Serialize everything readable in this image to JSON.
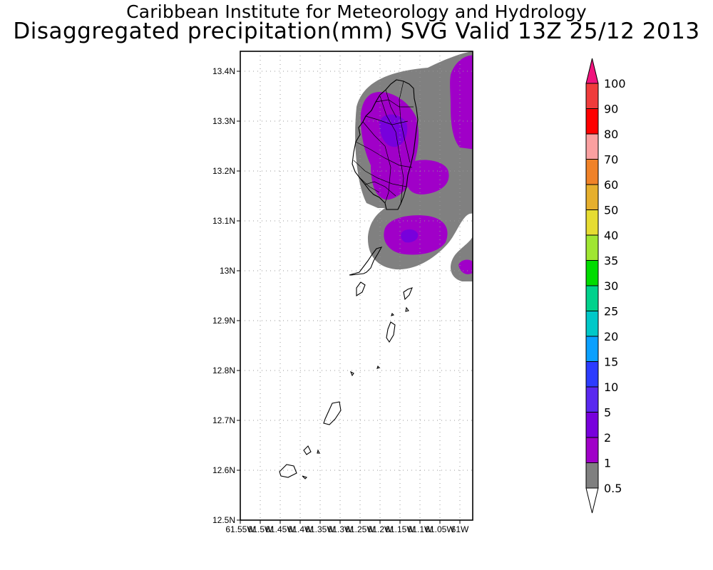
{
  "header": {
    "line1": "Caribbean Institute for Meteorology and Hydrology",
    "line2": "Disaggregated precipitation(mm) SVG Valid 13Z 25/12 2013"
  },
  "map": {
    "region": "St. Vincent and the Grenadines",
    "lat_labels": [
      "13.4N",
      "13.3N",
      "13.2N",
      "13.1N",
      "13N",
      "12.9N",
      "12.8N",
      "12.7N",
      "12.6N",
      "12.5N"
    ],
    "lon_labels": [
      "61.55W",
      "61.5W",
      "61.45W",
      "61.4W",
      "61.35W",
      "61.3W",
      "61.25W",
      "61.2W",
      "61.15W",
      "61.1W",
      "61.05W",
      "61W"
    ],
    "lat_range": [
      12.5,
      13.44
    ],
    "lon_range": [
      -61.55,
      -60.98
    ],
    "grid": true
  },
  "legend": {
    "levels": [
      "0.5",
      "1",
      "2",
      "5",
      "10",
      "15",
      "20",
      "25",
      "30",
      "35",
      "40",
      "50",
      "60",
      "70",
      "80",
      "90",
      "100"
    ],
    "colors": [
      "#808080",
      "#a000c8",
      "#7800dc",
      "#5a28f0",
      "#2c3cff",
      "#0aa0ff",
      "#00c8c8",
      "#00d28c",
      "#00dc00",
      "#a0e632",
      "#e6dc32",
      "#e6af2d",
      "#f08228",
      "#faa0a0",
      "#ff0000",
      "#f03c3c",
      "#f0147d"
    ],
    "below_color": "#ffffff"
  }
}
